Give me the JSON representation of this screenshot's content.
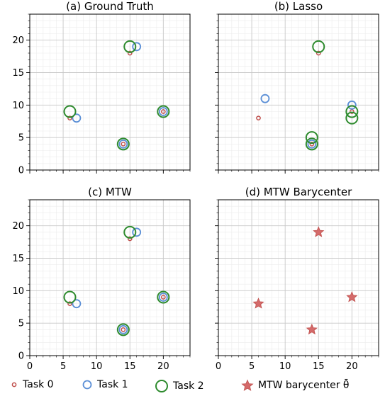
{
  "chart_data": [
    {
      "type": "scatter",
      "title": "(a) Ground Truth",
      "xlim": [
        0,
        24
      ],
      "ylim": [
        0,
        24
      ],
      "xticks": [
        0,
        5,
        10,
        15,
        20
      ],
      "yticks": [
        0,
        5,
        10,
        15,
        20
      ],
      "grid": true,
      "minor_grid": true,
      "series": [
        {
          "name": "Task 0",
          "marker": "circle",
          "size": "small",
          "color": "#c0504d",
          "points": [
            [
              6,
              8
            ],
            [
              15,
              18
            ],
            [
              14,
              4
            ],
            [
              20,
              9
            ]
          ]
        },
        {
          "name": "Task 1",
          "marker": "circle",
          "size": "medium",
          "color": "#5b8fd6",
          "points": [
            [
              7,
              8
            ],
            [
              16,
              19
            ],
            [
              14,
              4
            ],
            [
              20,
              9
            ]
          ]
        },
        {
          "name": "Task 2",
          "marker": "circle",
          "size": "large",
          "color": "#2e8b2e",
          "points": [
            [
              6,
              9
            ],
            [
              15,
              19
            ],
            [
              14,
              4
            ],
            [
              20,
              9
            ]
          ]
        }
      ]
    },
    {
      "type": "scatter",
      "title": "(b) Lasso",
      "xlim": [
        0,
        24
      ],
      "ylim": [
        0,
        24
      ],
      "xticks": [
        0,
        5,
        10,
        15,
        20
      ],
      "yticks": [
        0,
        5,
        10,
        15,
        20
      ],
      "grid": true,
      "minor_grid": true,
      "series": [
        {
          "name": "Task 0",
          "marker": "circle",
          "size": "small",
          "color": "#c0504d",
          "points": [
            [
              6,
              8
            ],
            [
              15,
              18
            ],
            [
              14,
              4
            ],
            [
              20,
              9
            ]
          ]
        },
        {
          "name": "Task 1",
          "marker": "circle",
          "size": "medium",
          "color": "#5b8fd6",
          "points": [
            [
              7,
              11
            ],
            [
              20,
              10
            ],
            [
              14,
              4
            ]
          ]
        },
        {
          "name": "Task 2",
          "marker": "circle",
          "size": "large",
          "color": "#2e8b2e",
          "points": [
            [
              15,
              19
            ],
            [
              14,
              5
            ],
            [
              14,
              4
            ],
            [
              20,
              9
            ],
            [
              20,
              8
            ]
          ]
        }
      ]
    },
    {
      "type": "scatter",
      "title": "(c) MTW",
      "xlim": [
        0,
        24
      ],
      "ylim": [
        0,
        24
      ],
      "xticks": [
        0,
        5,
        10,
        15,
        20
      ],
      "yticks": [
        0,
        5,
        10,
        15,
        20
      ],
      "grid": true,
      "minor_grid": true,
      "series": [
        {
          "name": "Task 0",
          "marker": "circle",
          "size": "small",
          "color": "#c0504d",
          "points": [
            [
              6,
              8
            ],
            [
              15,
              18
            ],
            [
              14,
              4
            ],
            [
              20,
              9
            ]
          ]
        },
        {
          "name": "Task 1",
          "marker": "circle",
          "size": "medium",
          "color": "#5b8fd6",
          "points": [
            [
              7,
              8
            ],
            [
              16,
              19
            ],
            [
              14,
              4
            ],
            [
              20,
              9
            ]
          ]
        },
        {
          "name": "Task 2",
          "marker": "circle",
          "size": "large",
          "color": "#2e8b2e",
          "points": [
            [
              6,
              9
            ],
            [
              15,
              19
            ],
            [
              14,
              4
            ],
            [
              20,
              9
            ]
          ]
        }
      ]
    },
    {
      "type": "scatter",
      "title": "(d) MTW Barycenter",
      "xlim": [
        0,
        24
      ],
      "ylim": [
        0,
        24
      ],
      "xticks": [
        0,
        5,
        10,
        15,
        20
      ],
      "yticks": [
        0,
        5,
        10,
        15,
        20
      ],
      "grid": true,
      "minor_grid": true,
      "series": [
        {
          "name": "MTW barycenter θ̄",
          "marker": "star",
          "size": "star",
          "color": "#d46a6a",
          "points": [
            [
              6,
              8
            ],
            [
              15,
              19
            ],
            [
              14,
              4
            ],
            [
              20,
              9
            ]
          ]
        }
      ]
    }
  ],
  "legend": {
    "items": [
      {
        "label": "Task 0",
        "marker": "circle",
        "size": "small",
        "color": "#c0504d"
      },
      {
        "label": "Task 1",
        "marker": "circle",
        "size": "medium",
        "color": "#5b8fd6"
      },
      {
        "label": "Task 2",
        "marker": "circle",
        "size": "large",
        "color": "#2e8b2e"
      },
      {
        "label": "MTW barycenter θ̄",
        "marker": "star",
        "size": "star",
        "color": "#d46a6a"
      }
    ]
  }
}
